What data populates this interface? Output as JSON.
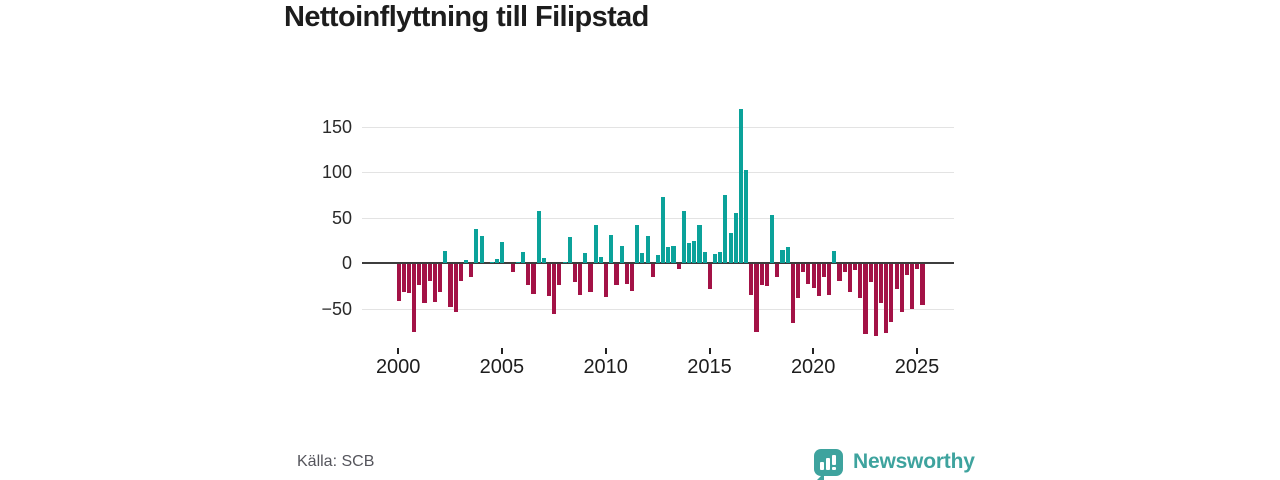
{
  "title": "Nettoinflyttning till Filipstad",
  "source": "Källa: SCB",
  "branding": {
    "name": "Newsworthy"
  },
  "colors": {
    "positive": "#0ba29a",
    "negative": "#a31246",
    "zero_line": "#3d3d3d",
    "gridline": "#e3e3e3",
    "title_text": "#1d1d1d",
    "axis_text": "#222222",
    "source_text": "#55555c",
    "brand_teal": "#3ea39e"
  },
  "chart_data": {
    "type": "bar",
    "title": "Nettoinflyttning till Filipstad",
    "xlabel": "",
    "ylabel": "",
    "frequency": "quarterly",
    "start_year": 2000,
    "start_quarter": 1,
    "x_tick_labels": [
      "2000",
      "2005",
      "2010",
      "2015",
      "2020",
      "2025"
    ],
    "y_tick_labels": [
      "150",
      "100",
      "50",
      "0",
      "−50"
    ],
    "y_ticks": [
      150,
      100,
      50,
      0,
      -50
    ],
    "ylim": [
      -85,
      175
    ],
    "grid": "horizontal",
    "legend": "none",
    "values_by_year": {
      "2000": [
        -40,
        -30,
        -32,
        -74
      ],
      "2001": [
        -23,
        -43,
        -18,
        -41
      ],
      "2002": [
        -31,
        14,
        -47,
        -53
      ],
      "2003": [
        -18,
        4,
        -14,
        38
      ],
      "2004": [
        30,
        0,
        1,
        5
      ],
      "2005": [
        23,
        0,
        -9,
        2
      ],
      "2006": [
        12,
        -23,
        -33,
        57
      ],
      "2007": [
        6,
        -35,
        -55,
        -23
      ],
      "2008": [
        1,
        29,
        -20,
        -34
      ],
      "2009": [
        11,
        -30,
        42,
        7
      ],
      "2010": [
        -36,
        31,
        -23,
        19
      ],
      "2011": [
        -22,
        -29,
        42,
        11
      ],
      "2012": [
        30,
        -14,
        9,
        73
      ],
      "2013": [
        18,
        19,
        -5,
        58
      ],
      "2014": [
        22,
        25,
        42,
        13
      ],
      "2015": [
        -27,
        10,
        12,
        75
      ],
      "2016": [
        33,
        55,
        170,
        103
      ],
      "2017": [
        -34,
        -74,
        -23,
        -24
      ],
      "2018": [
        53,
        -14,
        15,
        18
      ],
      "2019": [
        -65,
        -37,
        -8,
        -22
      ],
      "2020": [
        -26,
        -35,
        -14,
        -34
      ],
      "2021": [
        14,
        -18,
        -9,
        -30
      ],
      "2022": [
        -6,
        -37,
        -77,
        -20
      ],
      "2023": [
        -79,
        -43,
        -75,
        -63
      ],
      "2024": [
        -27,
        -53,
        -12,
        -49
      ],
      "2025": [
        -5,
        -45
      ]
    }
  }
}
